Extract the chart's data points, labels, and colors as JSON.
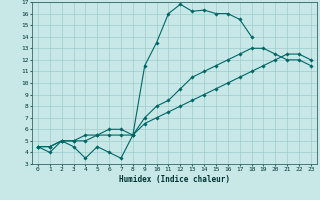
{
  "xlabel": "Humidex (Indice chaleur)",
  "ylabel": "",
  "xlim": [
    -0.5,
    23.5
  ],
  "ylim": [
    3,
    17
  ],
  "xticks": [
    0,
    1,
    2,
    3,
    4,
    5,
    6,
    7,
    8,
    9,
    10,
    11,
    12,
    13,
    14,
    15,
    16,
    17,
    18,
    19,
    20,
    21,
    22,
    23
  ],
  "yticks": [
    3,
    4,
    5,
    6,
    7,
    8,
    9,
    10,
    11,
    12,
    13,
    14,
    15,
    16,
    17
  ],
  "background_color": "#c8e8e8",
  "grid_color": "#a0cccc",
  "line_color": "#006666",
  "series": [
    {
      "x": [
        0,
        1,
        2,
        3,
        4,
        5,
        6,
        7,
        8,
        9,
        10,
        11,
        12,
        13,
        14,
        15,
        16,
        17,
        18
      ],
      "y": [
        4.5,
        4.0,
        5.0,
        4.5,
        3.5,
        4.5,
        4.0,
        3.5,
        5.5,
        11.5,
        13.5,
        16.0,
        16.8,
        16.2,
        16.3,
        16.0,
        16.0,
        15.5,
        14.0
      ]
    },
    {
      "x": [
        0,
        1,
        2,
        3,
        4,
        5,
        6,
        7,
        8,
        9,
        10,
        11,
        12,
        13,
        14,
        15,
        16,
        17,
        18,
        19,
        20,
        21,
        22,
        23
      ],
      "y": [
        4.5,
        4.5,
        5.0,
        5.0,
        5.5,
        5.5,
        6.0,
        6.0,
        5.5,
        7.0,
        8.0,
        8.5,
        9.5,
        10.5,
        11.0,
        11.5,
        12.0,
        12.5,
        13.0,
        13.0,
        12.5,
        12.0,
        12.0,
        11.5
      ]
    },
    {
      "x": [
        0,
        1,
        2,
        3,
        4,
        5,
        6,
        7,
        8,
        9,
        10,
        11,
        12,
        13,
        14,
        15,
        16,
        17,
        18,
        19,
        20,
        21,
        22,
        23
      ],
      "y": [
        4.5,
        4.5,
        5.0,
        5.0,
        5.0,
        5.5,
        5.5,
        5.5,
        5.5,
        6.5,
        7.0,
        7.5,
        8.0,
        8.5,
        9.0,
        9.5,
        10.0,
        10.5,
        11.0,
        11.5,
        12.0,
        12.5,
        12.5,
        12.0
      ]
    }
  ],
  "marker": "D",
  "markersize": 1.8,
  "linewidth": 0.8
}
